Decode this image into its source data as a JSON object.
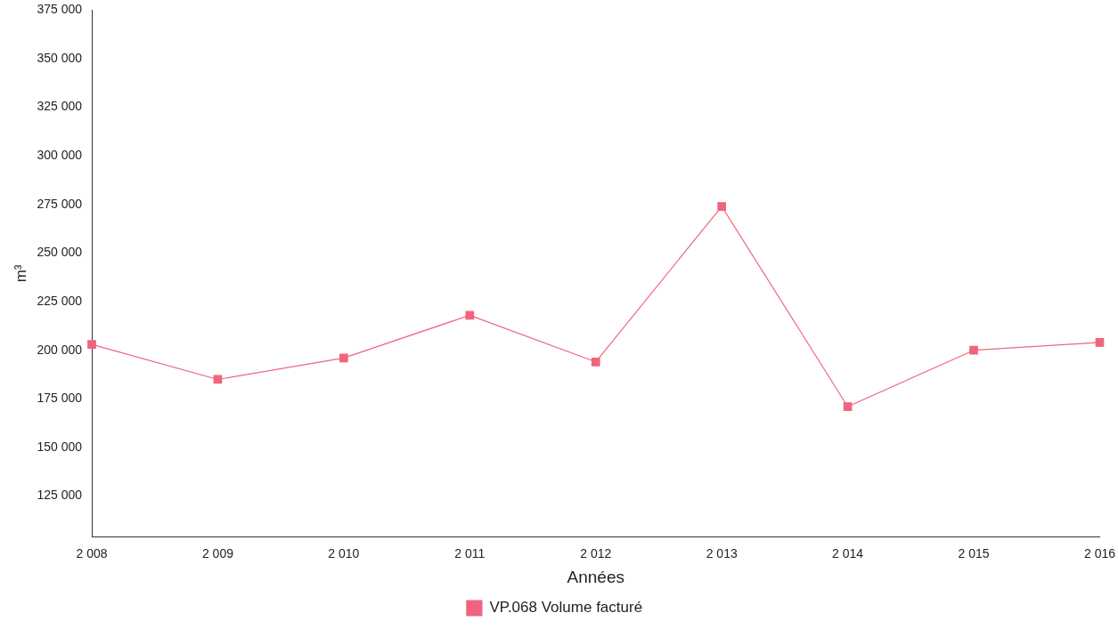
{
  "chart_data": {
    "type": "line",
    "xlabel": "Années",
    "ylabel": "m³",
    "categories": [
      "2 008",
      "2 009",
      "2 010",
      "2 011",
      "2 012",
      "2 013",
      "2 014",
      "2 015",
      "2 016"
    ],
    "series": [
      {
        "name": "VP.068 Volume facturé",
        "color": "#f0647e",
        "values": [
          203000,
          185000,
          196000,
          218000,
          194000,
          274000,
          171000,
          200000,
          204000
        ]
      }
    ],
    "ylim": [
      104000,
      375000
    ],
    "yticks": [
      {
        "value": 125000,
        "label": "125 000"
      },
      {
        "value": 150000,
        "label": "150 000"
      },
      {
        "value": 175000,
        "label": "175 000"
      },
      {
        "value": 200000,
        "label": "200 000"
      },
      {
        "value": 225000,
        "label": "225 000"
      },
      {
        "value": 250000,
        "label": "250 000"
      },
      {
        "value": 275000,
        "label": "275 000"
      },
      {
        "value": 300000,
        "label": "300 000"
      },
      {
        "value": 325000,
        "label": "325 000"
      },
      {
        "value": 350000,
        "label": "350 000"
      },
      {
        "value": 375000,
        "label": "375 000"
      }
    ],
    "grid": false,
    "legend": "bottom",
    "marker": "square",
    "line_style": "solid"
  }
}
